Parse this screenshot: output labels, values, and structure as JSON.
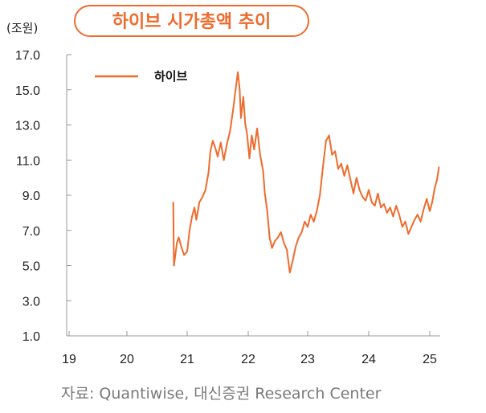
{
  "chart_data": {
    "type": "line",
    "title": "하이브 시가총액 추이",
    "unit": "(조원)",
    "source": "자료: Quantiwise, 대신증권 Research Center",
    "colors": {
      "accent": "#ee6b2d",
      "axis": "#999999",
      "text": "#222222"
    },
    "ylim": [
      1.0,
      17.0
    ],
    "yticks": [
      "1.0",
      "3.0",
      "5.0",
      "7.0",
      "9.0",
      "11.0",
      "13.0",
      "15.0",
      "17.0"
    ],
    "xlim": [
      19,
      25.2
    ],
    "xticks": [
      "19",
      "20",
      "21",
      "22",
      "23",
      "24",
      "25"
    ],
    "grid": false,
    "legend_position": "top-left",
    "series": [
      {
        "name": "하이브",
        "x": [
          20.77,
          20.78,
          20.8,
          20.83,
          20.86,
          20.9,
          20.95,
          21.0,
          21.04,
          21.08,
          21.12,
          21.15,
          21.2,
          21.25,
          21.3,
          21.35,
          21.38,
          21.42,
          21.46,
          21.5,
          21.55,
          21.6,
          21.65,
          21.7,
          21.75,
          21.8,
          21.83,
          21.86,
          21.88,
          21.92,
          21.95,
          21.98,
          22.02,
          22.06,
          22.1,
          22.15,
          22.2,
          22.25,
          22.28,
          22.32,
          22.36,
          22.4,
          22.45,
          22.5,
          22.55,
          22.6,
          22.65,
          22.7,
          22.75,
          22.8,
          22.85,
          22.9,
          22.95,
          23.0,
          23.05,
          23.1,
          23.15,
          23.2,
          23.25,
          23.3,
          23.35,
          23.4,
          23.45,
          23.5,
          23.55,
          23.6,
          23.65,
          23.7,
          23.75,
          23.8,
          23.85,
          23.9,
          23.95,
          24.0,
          24.05,
          24.1,
          24.15,
          24.2,
          24.25,
          24.3,
          24.35,
          24.4,
          24.45,
          24.5,
          24.55,
          24.6,
          24.65,
          24.7,
          24.75,
          24.8,
          24.85,
          24.9,
          24.95,
          25.0,
          25.04,
          25.08,
          25.12,
          25.15
        ],
        "values": [
          8.6,
          5.0,
          5.5,
          6.3,
          6.6,
          6.1,
          5.6,
          5.8,
          7.0,
          7.8,
          8.3,
          7.6,
          8.6,
          8.9,
          9.3,
          10.3,
          11.5,
          12.1,
          11.7,
          11.2,
          12.0,
          11.0,
          11.9,
          12.6,
          13.8,
          15.2,
          16.0,
          15.0,
          13.4,
          14.6,
          13.1,
          12.5,
          11.1,
          12.4,
          11.6,
          12.8,
          11.3,
          10.4,
          9.1,
          8.1,
          6.6,
          6.0,
          6.4,
          6.6,
          6.9,
          6.3,
          5.9,
          4.6,
          5.3,
          6.1,
          6.6,
          6.9,
          7.5,
          7.2,
          7.9,
          7.5,
          8.1,
          9.0,
          10.6,
          12.1,
          12.4,
          11.3,
          11.5,
          10.5,
          10.8,
          10.1,
          10.7,
          9.9,
          9.1,
          10.0,
          9.3,
          8.9,
          8.7,
          9.3,
          8.6,
          8.4,
          9.1,
          8.3,
          8.5,
          8.0,
          8.3,
          7.8,
          8.4,
          7.9,
          7.2,
          7.5,
          6.8,
          7.2,
          7.6,
          7.9,
          7.5,
          8.2,
          8.8,
          8.1,
          8.6,
          9.4,
          9.9,
          10.6
        ]
      }
    ]
  }
}
